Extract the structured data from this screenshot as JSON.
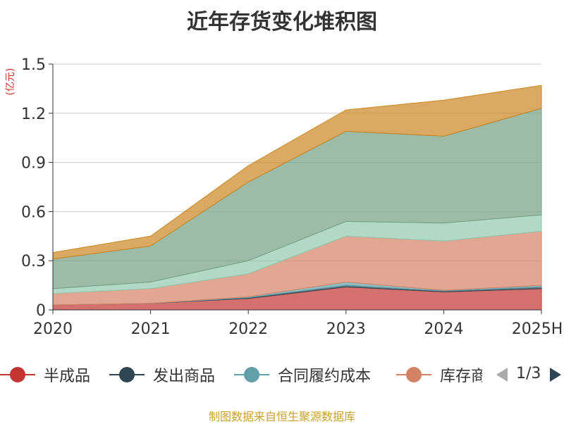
{
  "chart_data": {
    "type": "area",
    "stacked": true,
    "title": "近年存货变化堆积图",
    "unit_label": "(亿元)",
    "categories": [
      "2020",
      "2021",
      "2022",
      "2023",
      "2024",
      "2025H"
    ],
    "ylim": [
      0,
      1.5
    ],
    "yticks": [
      "0",
      "0.3",
      "0.6",
      "0.9",
      "1.2",
      "1.5"
    ],
    "grid": true,
    "series": [
      {
        "name": "半成品",
        "color": "#c23531",
        "values": [
          0.03,
          0.04,
          0.07,
          0.14,
          0.11,
          0.13
        ]
      },
      {
        "name": "发出商品",
        "color": "#2f4554",
        "values": [
          0.0,
          0.0,
          0.005,
          0.01,
          0.005,
          0.01
        ]
      },
      {
        "name": "合同履约成本",
        "color": "#61a0a8",
        "values": [
          0.0,
          0.0,
          0.005,
          0.02,
          0.005,
          0.01
        ]
      },
      {
        "name": "库存商品",
        "color": "#d48265",
        "values": [
          0.07,
          0.09,
          0.14,
          0.28,
          0.3,
          0.33
        ]
      },
      {
        "name": "",
        "color": "#91c7ae",
        "values": [
          0.03,
          0.04,
          0.08,
          0.09,
          0.11,
          0.1
        ]
      },
      {
        "name": "",
        "color": "#749f83",
        "values": [
          0.18,
          0.22,
          0.48,
          0.55,
          0.53,
          0.65
        ]
      },
      {
        "name": "",
        "color": "#ca8622",
        "values": [
          0.04,
          0.06,
          0.1,
          0.13,
          0.22,
          0.14
        ]
      }
    ]
  },
  "legend": {
    "page_indicator": "1/3"
  },
  "source_text": "制图数据来自恒生聚源数据库"
}
